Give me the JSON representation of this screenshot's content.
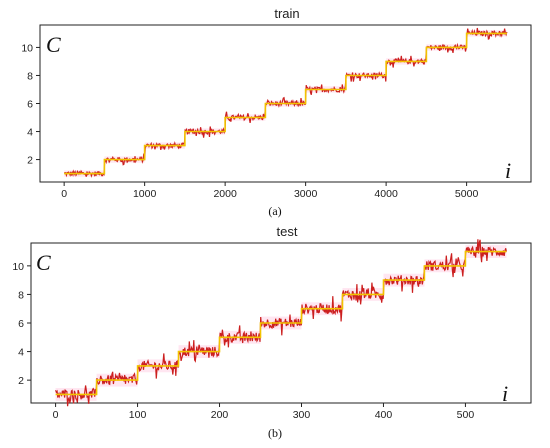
{
  "chart_data": [
    {
      "type": "line",
      "title": "train",
      "caption": "(a)",
      "xlabel": "i",
      "ylabel": "C",
      "xlim": [
        -300,
        5800
      ],
      "ylim": [
        0.4,
        11.6
      ],
      "xticks": [
        0,
        1000,
        2000,
        3000,
        4000,
        5000
      ],
      "yticks": [
        2,
        4,
        6,
        8,
        10
      ],
      "grid": false,
      "series": [
        {
          "color": "#f2c300",
          "step_width": 500,
          "x_end": 5500,
          "levels": [
            1,
            2,
            3,
            4,
            5,
            6,
            7,
            8,
            9,
            10,
            11
          ]
        },
        {
          "color": "#cc1f1f",
          "step_width": 500,
          "x_end": 5500,
          "levels": [
            1,
            2,
            3,
            4,
            5,
            6,
            7,
            8,
            9,
            10,
            11
          ],
          "noise": 0.25
        }
      ]
    },
    {
      "type": "line",
      "title": "test",
      "caption": "(b)",
      "xlabel": "i",
      "ylabel": "C",
      "xlim": [
        -30,
        580
      ],
      "ylim": [
        0.4,
        11.6
      ],
      "xticks": [
        0,
        100,
        200,
        300,
        400,
        500
      ],
      "yticks": [
        2,
        4,
        6,
        8,
        10
      ],
      "grid": false,
      "series": [
        {
          "color": "#f2c300",
          "step_width": 50,
          "x_end": 550,
          "levels": [
            1,
            2,
            3,
            4,
            5,
            6,
            7,
            8,
            9,
            10,
            11
          ]
        },
        {
          "color": "#cc1f1f",
          "step_width": 50,
          "x_end": 550,
          "levels": [
            1,
            2,
            3,
            4,
            5,
            6,
            7,
            8,
            9,
            10,
            11
          ],
          "noise": 0.5
        }
      ]
    }
  ]
}
